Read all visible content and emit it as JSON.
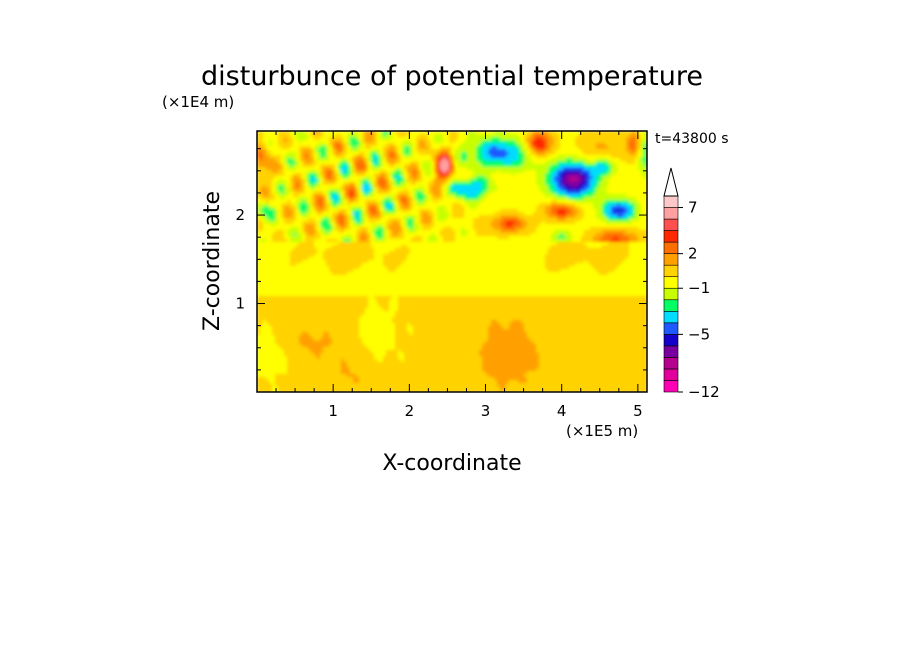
{
  "chart_data": {
    "type": "heatmap",
    "title": "disturbunce of potential temperature",
    "xlabel": "X-coordinate",
    "ylabel": "Z-coordinate",
    "x_multiplier": "(×1E5 m)",
    "y_multiplier": "(×1E4 m)",
    "time_label": "t=43800 s",
    "xlim": [
      0,
      5.12
    ],
    "ylim": [
      0,
      2.95
    ],
    "x_ticks": [
      "1",
      "2",
      "3",
      "4",
      "5"
    ],
    "y_ticks": [
      "1",
      "2"
    ],
    "colorbar": {
      "tick_labels": [
        "7",
        "2",
        "−1",
        "−5",
        "−12"
      ],
      "tick_levels": [
        7,
        2,
        -1,
        -5,
        -12
      ],
      "levels": [
        -12,
        -10,
        -8,
        -7,
        -6,
        -5,
        -4,
        -3,
        -2,
        -1,
        0,
        1,
        2,
        3,
        4,
        5,
        7,
        9,
        11
      ],
      "colors": [
        "#ff00b4",
        "#e1009b",
        "#b4008c",
        "#7800a0",
        "#1400c8",
        "#1e5aff",
        "#00dcff",
        "#00ff64",
        "#c8ff00",
        "#ffff00",
        "#ffd200",
        "#ffa000",
        "#ff6e00",
        "#ff2800",
        "#ff5050",
        "#ffa0a0",
        "#ffc8c8"
      ]
    },
    "features": [
      {
        "x": 2.45,
        "z": 2.55,
        "value": 5.5
      },
      {
        "x": 3.7,
        "z": 2.8,
        "value": 5
      },
      {
        "x": 4.15,
        "z": 2.4,
        "value": -7
      },
      {
        "x": 4.75,
        "z": 2.05,
        "value": -5
      },
      {
        "x": 4.0,
        "z": 2.05,
        "value": 4
      },
      {
        "x": 3.3,
        "z": 0.5,
        "value": 3
      },
      {
        "x": 3.2,
        "z": 2.7,
        "value": -4
      }
    ]
  }
}
